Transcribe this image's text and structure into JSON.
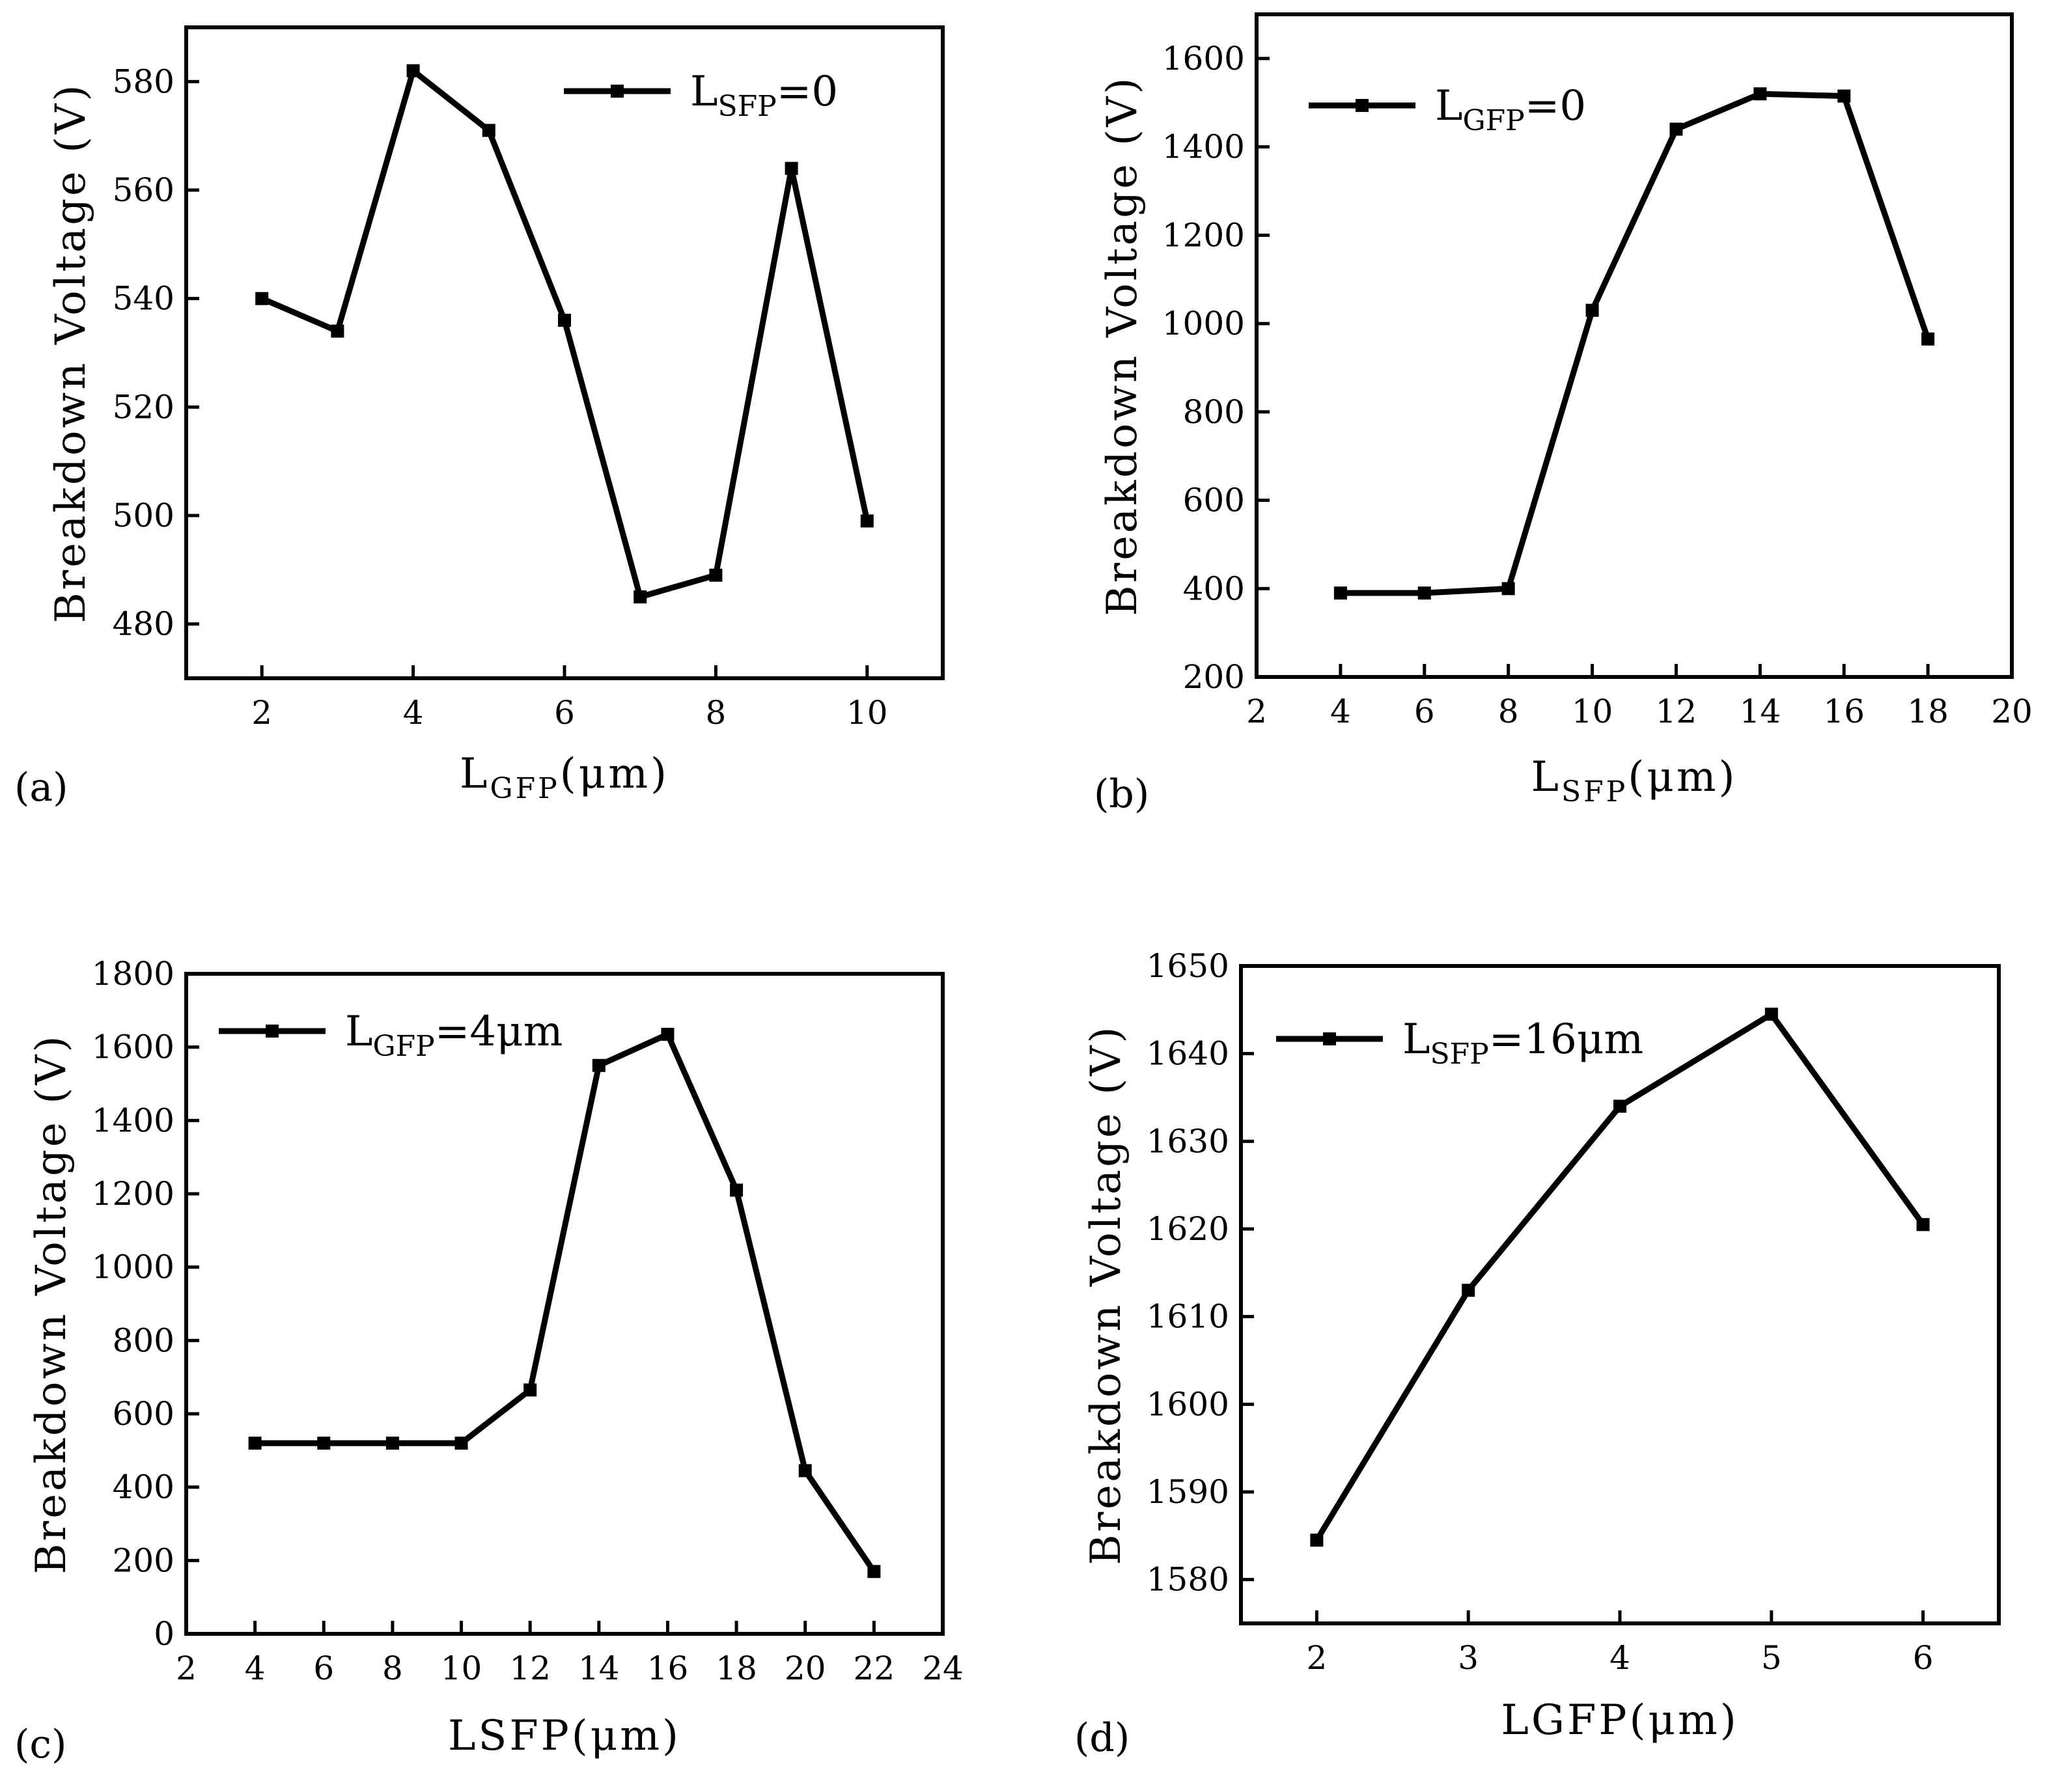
{
  "chart_data": [
    {
      "panel": "(a)",
      "type": "line",
      "x": [
        2,
        3,
        4,
        5,
        6,
        7,
        8,
        9,
        10
      ],
      "series": [
        {
          "name": "L_SFP=0",
          "values": [
            540,
            534,
            582,
            571,
            536,
            485,
            489,
            564,
            499
          ]
        }
      ],
      "xlabel": {
        "main": "L",
        "sub": "GFP",
        "unit": "(μm)"
      },
      "ylabel": "Breakdown Voltage (V)",
      "legend": {
        "main": "L",
        "sub": "SFP",
        "rest": "=0",
        "position": "top-right"
      },
      "xticks": [
        "2",
        "4",
        "6",
        "8",
        "10"
      ],
      "yticks": [
        "480",
        "500",
        "520",
        "540",
        "560",
        "580"
      ],
      "xlim": [
        1,
        11
      ],
      "ylim": [
        470,
        590
      ]
    },
    {
      "panel": "(b)",
      "type": "line",
      "x": [
        4,
        6,
        8,
        10,
        12,
        14,
        16,
        18
      ],
      "series": [
        {
          "name": "L_GFP=0",
          "values": [
            390,
            390,
            400,
            1030,
            1440,
            1520,
            1515,
            965
          ]
        }
      ],
      "xlabel": {
        "main": "L",
        "sub": "SFP",
        "unit": "(μm)"
      },
      "ylabel": "Breakdown Voltage (V)",
      "legend": {
        "main": "L",
        "sub": "GFP",
        "rest": "=0",
        "position": "top-left"
      },
      "xticks": [
        "2",
        "4",
        "6",
        "8",
        "10",
        "12",
        "14",
        "16",
        "18",
        "20"
      ],
      "yticks": [
        "200",
        "400",
        "600",
        "800",
        "1000",
        "1200",
        "1400",
        "1600"
      ],
      "xlim": [
        2,
        20
      ],
      "ylim": [
        200,
        1700
      ]
    },
    {
      "panel": "(c)",
      "type": "line",
      "x": [
        4,
        6,
        8,
        10,
        12,
        14,
        16,
        18,
        20,
        22
      ],
      "series": [
        {
          "name": "L_GFP=4μm",
          "values": [
            520,
            520,
            520,
            520,
            665,
            1550,
            1635,
            1210,
            445,
            170
          ]
        }
      ],
      "xlabel": {
        "main": "LSFP",
        "sub": "",
        "unit": "(μm)"
      },
      "ylabel": "Breakdown Voltage (V)",
      "legend": {
        "main": "L",
        "sub": "GFP",
        "rest": "=4μm",
        "position": "top-left"
      },
      "xticks": [
        "2",
        "4",
        "6",
        "8",
        "10",
        "12",
        "14",
        "16",
        "18",
        "20",
        "22",
        "24"
      ],
      "yticks": [
        "0",
        "200",
        "400",
        "600",
        "800",
        "1000",
        "1200",
        "1400",
        "1600",
        "1800"
      ],
      "xlim": [
        2,
        24
      ],
      "ylim": [
        0,
        1800
      ]
    },
    {
      "panel": "(d)",
      "type": "line",
      "x": [
        2,
        3,
        4,
        5,
        6
      ],
      "series": [
        {
          "name": "L_SFP=16μm",
          "values": [
            1584.5,
            1613,
            1634,
            1644.5,
            1620.5
          ]
        }
      ],
      "xlabel": {
        "main": "LGFP",
        "sub": "",
        "unit": "(μm)"
      },
      "ylabel": "Breakdown Voltage (V)",
      "legend": {
        "main": "L",
        "sub": "SFP",
        "rest": "=16μm",
        "position": "top-left"
      },
      "xticks": [
        "2",
        "3",
        "4",
        "5",
        "6"
      ],
      "yticks": [
        "1580",
        "1590",
        "1600",
        "1610",
        "1620",
        "1630",
        "1640",
        "1650"
      ],
      "xlim": [
        1.5,
        6.5
      ],
      "ylim": [
        1575,
        1650
      ]
    }
  ]
}
